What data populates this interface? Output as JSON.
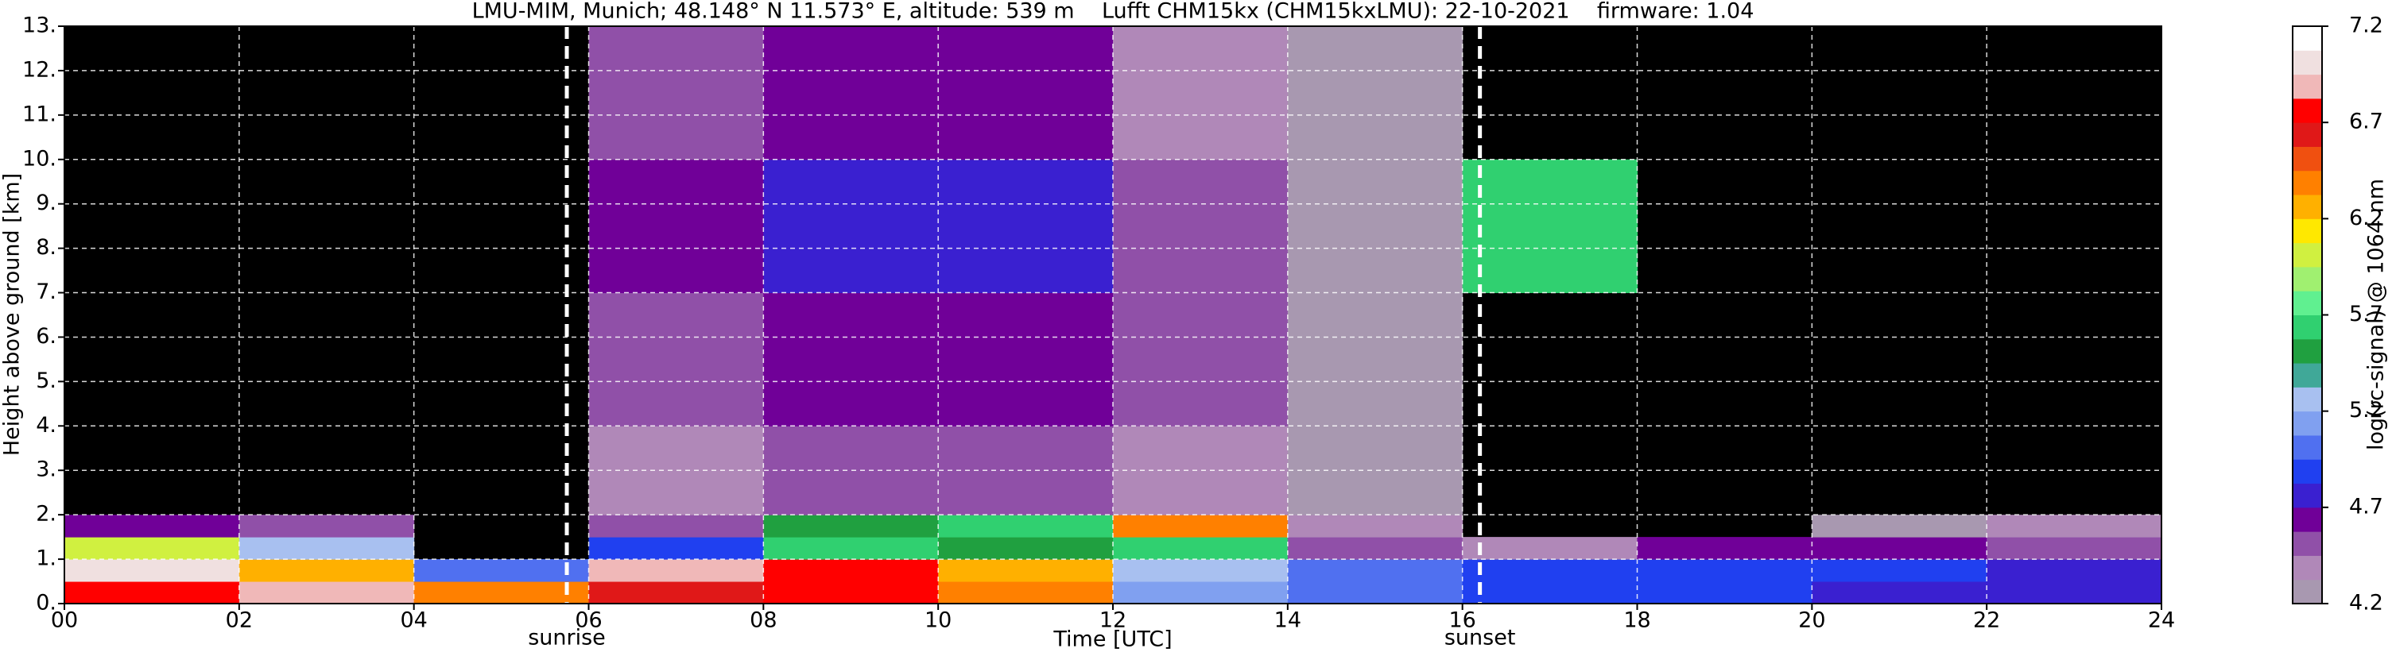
{
  "chart_data": {
    "type": "heatmap",
    "title": "LMU-MIM, Munich; 48.148° N 11.573° E, altitude: 539 m    Lufft CHM15kx (CHM15kxLMU): 22-10-2021    firmware: 1.04",
    "xlabel": "Time [UTC]",
    "ylabel": "Height above ground [km]",
    "colorbar_label": "log(rc-signal) @ 1064 nm",
    "xlim": [
      0,
      24
    ],
    "xticks": [
      {
        "value": 0,
        "label": "00"
      },
      {
        "value": 2,
        "label": "02"
      },
      {
        "value": 4,
        "label": "04"
      },
      {
        "value": 6,
        "label": "06"
      },
      {
        "value": 8,
        "label": "08"
      },
      {
        "value": 10,
        "label": "10"
      },
      {
        "value": 12,
        "label": "12"
      },
      {
        "value": 14,
        "label": "14"
      },
      {
        "value": 16,
        "label": "16"
      },
      {
        "value": 18,
        "label": "18"
      },
      {
        "value": 20,
        "label": "20"
      },
      {
        "value": 22,
        "label": "22"
      },
      {
        "value": 24,
        "label": "24"
      }
    ],
    "ylim": [
      0,
      13
    ],
    "yticks": [
      {
        "value": 0,
        "label": "0."
      },
      {
        "value": 1,
        "label": "1."
      },
      {
        "value": 2,
        "label": "2."
      },
      {
        "value": 3,
        "label": "3."
      },
      {
        "value": 4,
        "label": "4."
      },
      {
        "value": 5,
        "label": "5."
      },
      {
        "value": 6,
        "label": "6."
      },
      {
        "value": 7,
        "label": "7."
      },
      {
        "value": 8,
        "label": "8."
      },
      {
        "value": 9,
        "label": "9."
      },
      {
        "value": 10,
        "label": "10."
      },
      {
        "value": 11,
        "label": "11."
      },
      {
        "value": 12,
        "label": "12."
      },
      {
        "value": 13,
        "label": "13."
      }
    ],
    "grid": true,
    "x_bins": [
      0,
      2,
      4,
      6,
      8,
      10,
      12,
      14,
      16,
      18,
      20,
      22,
      24
    ],
    "y_bins": [
      0,
      0.5,
      1,
      1.5,
      2,
      4,
      7,
      10,
      13
    ],
    "z": [
      [
        6.8,
        6.9,
        6.4,
        6.6,
        6.8,
        6.4,
        5.1,
        5.0,
        4.9,
        4.9,
        4.8,
        4.8
      ],
      [
        7.0,
        6.3,
        5.0,
        6.9,
        6.7,
        6.2,
        5.3,
        5.0,
        4.9,
        4.9,
        4.9,
        4.8
      ],
      [
        6.0,
        5.3,
        null,
        4.9,
        5.6,
        5.5,
        5.6,
        4.5,
        4.4,
        4.6,
        4.6,
        4.5
      ],
      [
        4.6,
        4.5,
        null,
        4.5,
        5.5,
        5.6,
        6.4,
        4.4,
        null,
        null,
        4.3,
        4.4
      ],
      [
        null,
        null,
        null,
        4.4,
        4.5,
        4.5,
        4.4,
        4.3,
        null,
        null,
        null,
        null
      ],
      [
        null,
        null,
        null,
        4.5,
        4.6,
        4.6,
        4.5,
        4.3,
        null,
        null,
        null,
        null
      ],
      [
        null,
        null,
        null,
        4.6,
        4.7,
        4.7,
        4.5,
        4.3,
        5.6,
        null,
        null,
        null
      ],
      [
        null,
        null,
        null,
        4.5,
        4.6,
        4.6,
        4.4,
        4.3,
        null,
        null,
        null,
        null
      ]
    ],
    "clim": [
      4.2,
      7.2
    ],
    "cticks": [
      4.2,
      4.7,
      5.2,
      5.7,
      6.2,
      6.7,
      7.2
    ],
    "colormap": [
      "#a898b0",
      "#b088b8",
      "#9050a8",
      "#700098",
      "#3a20d0",
      "#2040f0",
      "#5070f0",
      "#80a0f0",
      "#a8c0f0",
      "#40a898",
      "#20a040",
      "#30d070",
      "#60f090",
      "#a0f070",
      "#d0f040",
      "#ffe800",
      "#ffb000",
      "#ff8000",
      "#f05010",
      "#e01818",
      "#ff0000",
      "#f0b8b8",
      "#f0e0e0",
      "#ffffff"
    ],
    "annotations": [
      {
        "text": "sunrise",
        "x": 5.75
      },
      {
        "text": "sunset",
        "x": 16.2
      }
    ]
  }
}
